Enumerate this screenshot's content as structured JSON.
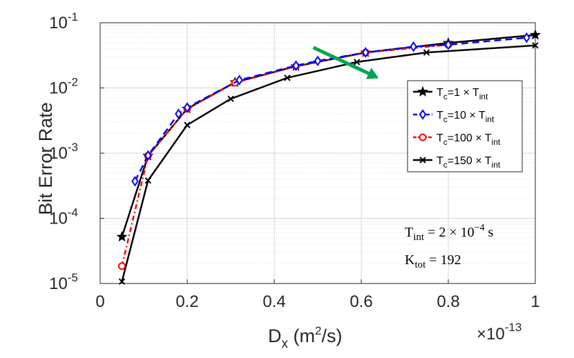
{
  "chart_data": {
    "type": "line",
    "title": "",
    "xlabel": {
      "main": "D",
      "sub": "x",
      "unit_open": " (m",
      "unit_sup": "2",
      "unit_close": "/s)"
    },
    "ylabel": "Bit Error Rate",
    "x_scale_note": {
      "base": "×10",
      "exp": "-13"
    },
    "xlim": [
      0,
      1
    ],
    "ylim_log10": [
      -5,
      -1
    ],
    "y_scale": "log",
    "grid": true,
    "x_ticks": [
      0,
      0.2,
      0.4,
      0.6,
      0.8,
      1
    ],
    "x_tick_labels": [
      "0",
      "0.2",
      "0.4",
      "0.6",
      "0.8",
      "1"
    ],
    "y_ticks_exp": [
      -5,
      -4,
      -3,
      -2,
      -1
    ],
    "y_tick_base": "10",
    "y_tick_exps": [
      "-5",
      "-4",
      "-3",
      "-2",
      "-1"
    ],
    "legend_position": "center-right",
    "series": [
      {
        "name": {
          "a": "T",
          "b": "c",
          "c": "=1 × T",
          "d": "int"
        },
        "color": "#000000",
        "dash": "",
        "marker": "star",
        "x": [
          0.05,
          0.11,
          0.2,
          0.31,
          0.45,
          0.61,
          0.8,
          1.0
        ],
        "y": [
          5.2e-05,
          0.00091,
          0.0048,
          0.0122,
          0.0215,
          0.035,
          0.049,
          0.065
        ]
      },
      {
        "name": {
          "a": "T",
          "b": "c",
          "c": "=10 × T",
          "d": "int"
        },
        "color": "#0000ff",
        "dash": "10,6",
        "marker": "diamond",
        "x": [
          0.08,
          0.11,
          0.18,
          0.2,
          0.32,
          0.45,
          0.5,
          0.61,
          0.72,
          0.8,
          0.98
        ],
        "y": [
          0.00037,
          0.00092,
          0.004,
          0.005,
          0.0132,
          0.022,
          0.026,
          0.035,
          0.043,
          0.046,
          0.059
        ]
      },
      {
        "name": {
          "a": "T",
          "b": "c",
          "c": "=100 × T",
          "d": "int"
        },
        "color": "#ff0000",
        "dash": "7,4,2,4",
        "marker": "circle",
        "x": [
          0.05,
          0.11,
          0.2,
          0.31,
          0.45,
          0.61,
          0.8
        ],
        "y": [
          1.85e-05,
          0.00091,
          0.0048,
          0.012,
          0.0215,
          0.035,
          0.046
        ]
      },
      {
        "name": {
          "a": "T",
          "b": "c",
          "c": "=150 × T",
          "d": "int"
        },
        "color": "#000000",
        "dash": "",
        "marker": "x",
        "x": [
          0.05,
          0.11,
          0.2,
          0.3,
          0.43,
          0.59,
          0.75,
          1.0
        ],
        "y": [
          1.07e-05,
          0.00038,
          0.0027,
          0.0068,
          0.0143,
          0.025,
          0.035,
          0.045
        ]
      }
    ],
    "annotations": {
      "t_int": {
        "a": "T",
        "b": "int",
        "c": " = 2 × 10",
        "d": "−4",
        "e": " s"
      },
      "k_tot": {
        "a": "K",
        "b": "tot",
        "c": " = 192"
      },
      "arrow": {
        "color": "#00a651",
        "from": [
          0.49,
          -1.38
        ],
        "to": [
          0.64,
          -1.85
        ]
      }
    }
  }
}
